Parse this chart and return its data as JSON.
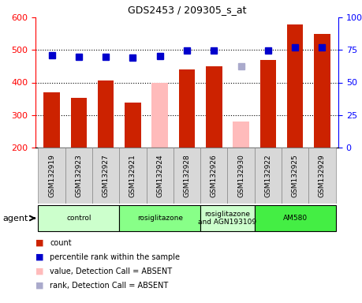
{
  "title": "GDS2453 / 209305_s_at",
  "samples": [
    "GSM132919",
    "GSM132923",
    "GSM132927",
    "GSM132921",
    "GSM132924",
    "GSM132928",
    "GSM132926",
    "GSM132930",
    "GSM132922",
    "GSM132925",
    "GSM132929"
  ],
  "bar_values": [
    370,
    352,
    407,
    338,
    null,
    440,
    450,
    null,
    470,
    578,
    550
  ],
  "bar_absent_values": [
    null,
    null,
    null,
    null,
    400,
    null,
    null,
    280,
    null,
    null,
    null
  ],
  "bar_color": "#cc2200",
  "bar_absent_color": "#ffbbbb",
  "rank_values": [
    483,
    478,
    480,
    476,
    481,
    498,
    498,
    null,
    498,
    508,
    508
  ],
  "rank_absent_values": [
    null,
    null,
    null,
    null,
    null,
    null,
    null,
    450,
    null,
    null,
    null
  ],
  "rank_color": "#0000cc",
  "rank_absent_color": "#aaaacc",
  "ylim_left": [
    200,
    600
  ],
  "ylim_right": [
    0,
    100
  ],
  "yticks_left": [
    200,
    300,
    400,
    500,
    600
  ],
  "yticks_right": [
    0,
    25,
    50,
    75,
    100
  ],
  "groups": [
    {
      "label": "control",
      "start": 0,
      "end": 2,
      "color": "#ccffcc"
    },
    {
      "label": "rosiglitazone",
      "start": 3,
      "end": 5,
      "color": "#88ff88"
    },
    {
      "label": "rosiglitazone\nand AGN193109",
      "start": 6,
      "end": 7,
      "color": "#ccffcc"
    },
    {
      "label": "AM580",
      "start": 8,
      "end": 10,
      "color": "#44ee44"
    }
  ],
  "agent_label": "agent",
  "legend_items": [
    {
      "label": "count",
      "color": "#cc2200"
    },
    {
      "label": "percentile rank within the sample",
      "color": "#0000cc"
    },
    {
      "label": "value, Detection Call = ABSENT",
      "color": "#ffbbbb"
    },
    {
      "label": "rank, Detection Call = ABSENT",
      "color": "#aaaacc"
    }
  ],
  "bar_width": 0.6,
  "marker_size": 6
}
